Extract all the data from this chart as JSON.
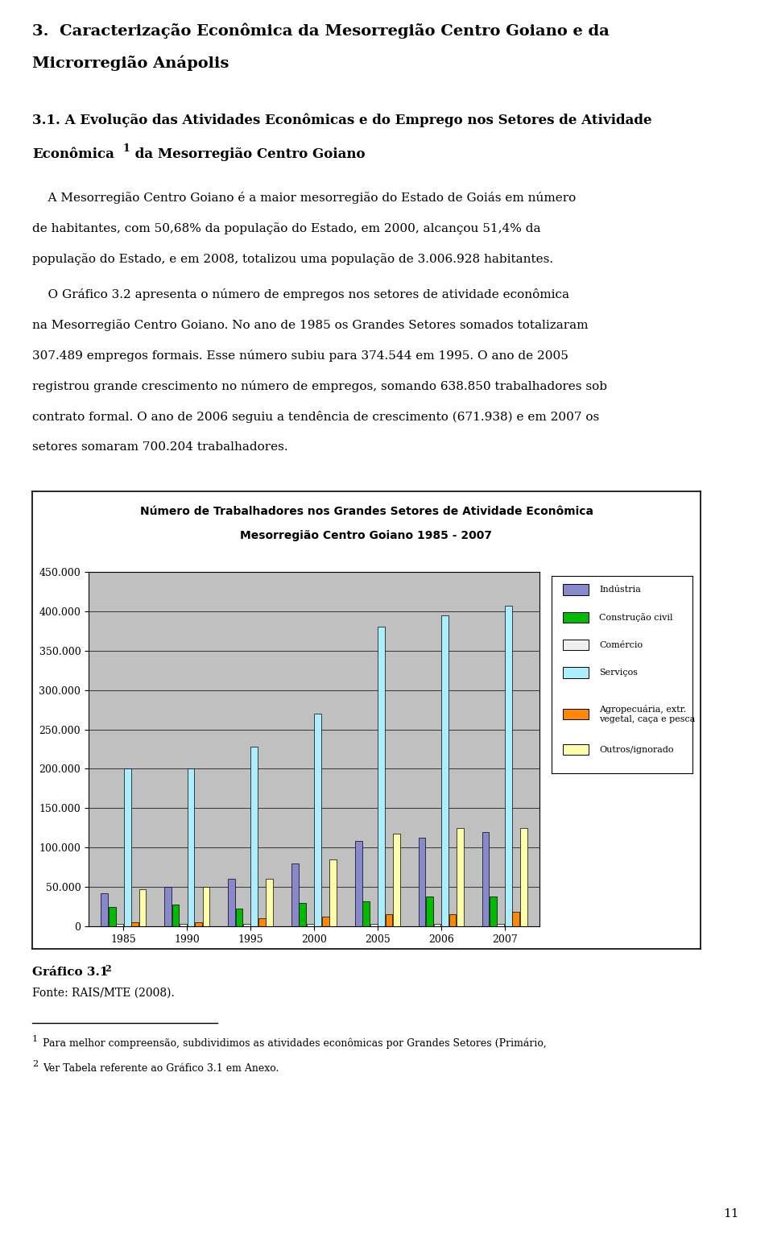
{
  "title_line1": "Número de Trabalhadores nos Grandes Setores de Atividade Econômica",
  "title_line2": "Mesorregião Centro Goiano 1985 - 2007",
  "years": [
    1985,
    1990,
    1995,
    2000,
    2005,
    2006,
    2007
  ],
  "data_industria": [
    42000,
    50000,
    60000,
    80000,
    108000,
    113000,
    120000
  ],
  "data_construcao": [
    25000,
    28000,
    23000,
    30000,
    32000,
    38000,
    38000
  ],
  "data_comercio": [
    3000,
    3000,
    3000,
    3000,
    3000,
    3000,
    3000
  ],
  "data_servicos": [
    200000,
    200000,
    228000,
    270000,
    380000,
    395000,
    407000
  ],
  "data_agropecuaria": [
    5000,
    5000,
    10000,
    12000,
    15000,
    15000,
    18000
  ],
  "data_outros": [
    47000,
    50000,
    60000,
    85000,
    118000,
    125000,
    125000
  ],
  "bar_color_industria": "#8888CC",
  "bar_color_construcao": "#00BB00",
  "bar_color_comercio": "#F0F0F0",
  "bar_color_servicos": "#AAEEFF",
  "bar_color_agropecuaria": "#FF8800",
  "bar_color_outros": "#FFFFAA",
  "ylim_max": 450000,
  "ytick_vals": [
    0,
    50000,
    100000,
    150000,
    200000,
    250000,
    300000,
    350000,
    400000,
    450000
  ],
  "ytick_labels": [
    "0",
    "50.000",
    "100.000",
    "150.000",
    "200.000",
    "250.000",
    "300.000",
    "350.000",
    "400.000",
    "450.000"
  ],
  "chart_bg": "#C0C0C0",
  "chart_title_bg": "#FFFFFF",
  "legend_bg": "#FFFFFF",
  "outer_bg": "#FFFFFF"
}
